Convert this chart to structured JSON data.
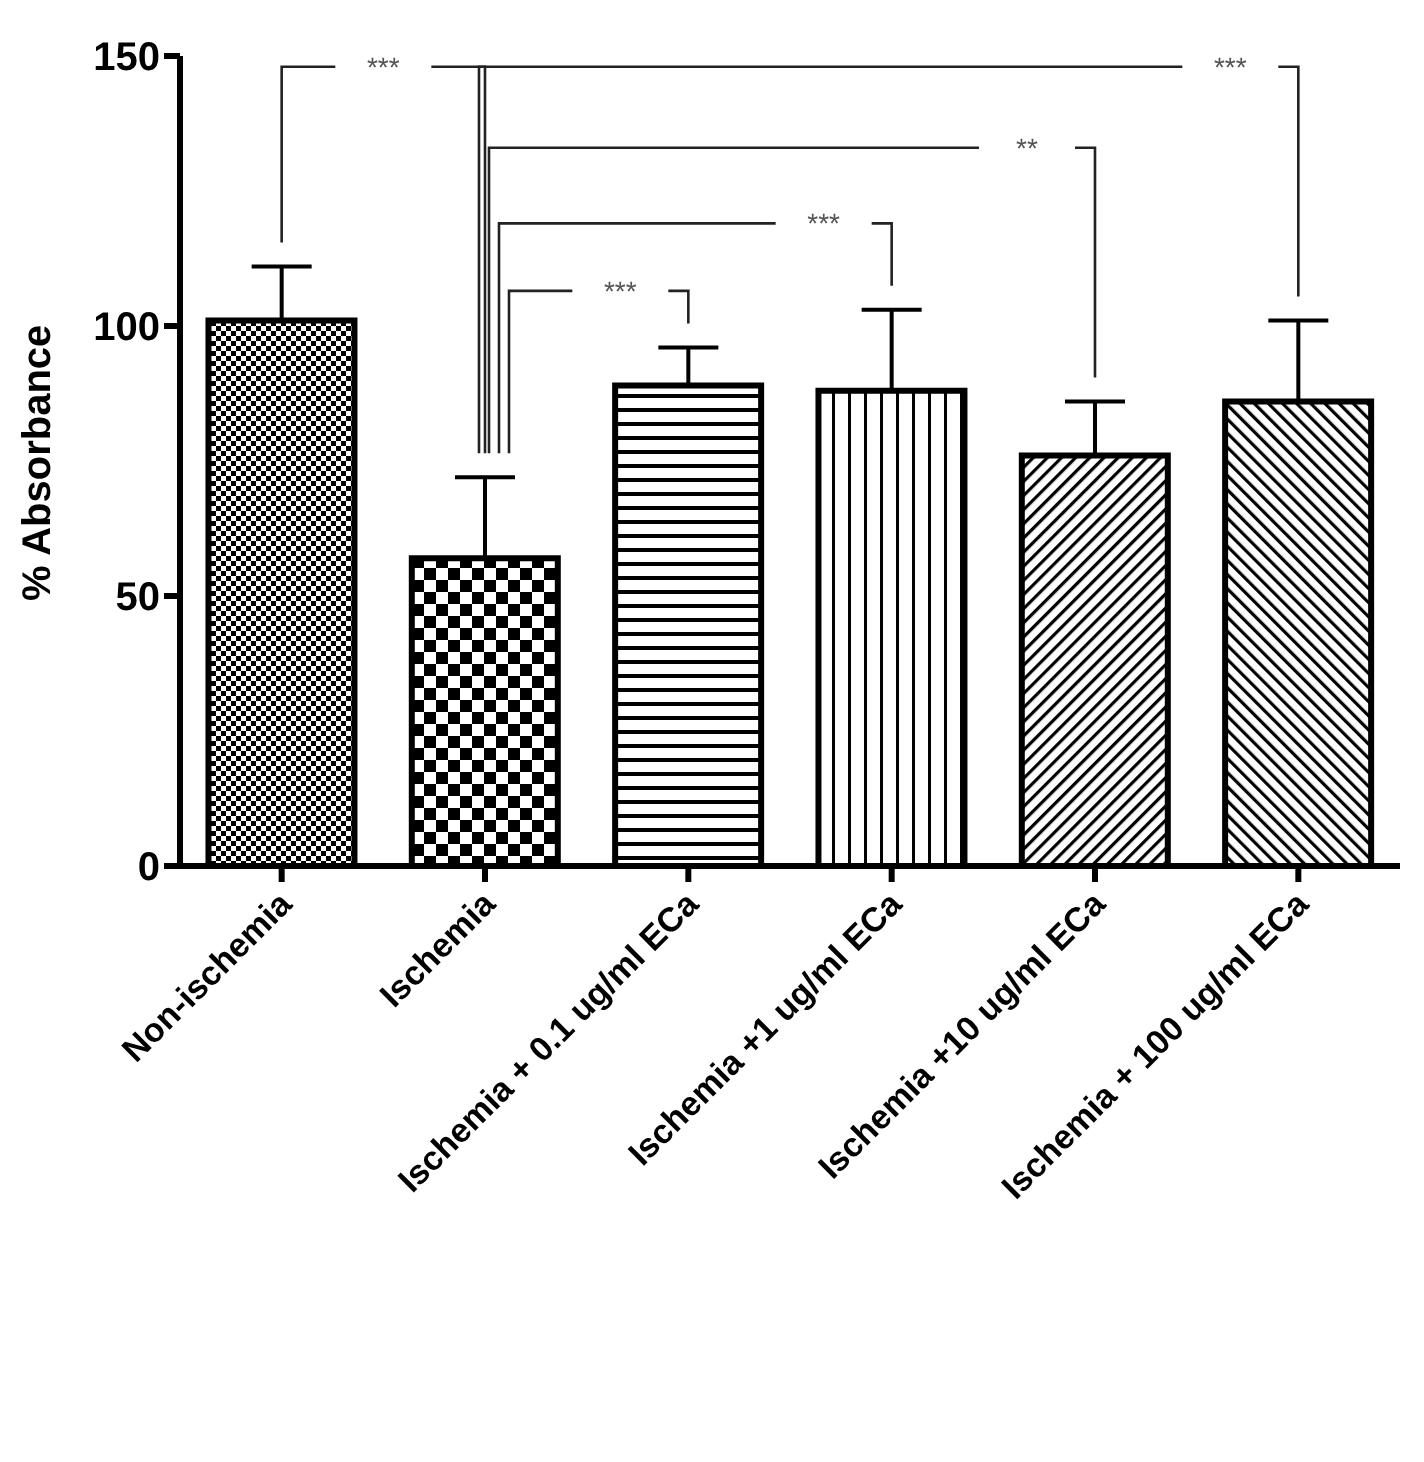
{
  "chart_data": {
    "type": "bar",
    "ylabel": "% Absorbance",
    "categories": [
      "Non-ischemia",
      "Ischemia",
      "Ischemia + 0.1 ug/ml  ECa",
      "Ischemia +1 ug/ml  ECa",
      "Ischemia +10 ug/ml  ECa",
      "Ischemia + 100 ug/ml  ECa"
    ],
    "values": [
      101,
      57,
      89,
      88,
      76,
      86
    ],
    "errors": [
      [
        101,
        111
      ],
      [
        57,
        72
      ],
      [
        89,
        96
      ],
      [
        88,
        103
      ],
      [
        76,
        86
      ],
      [
        86,
        101
      ]
    ],
    "colors": [
      "#000000",
      "#000000",
      "#000000",
      "#000000",
      "#000000",
      "#000000"
    ],
    "ylim": [
      0,
      150
    ],
    "yticks": [
      0,
      50,
      100,
      150
    ],
    "grid": false,
    "legend": false,
    "annotations": [
      "***",
      "***",
      "**",
      "***",
      "***"
    ]
  }
}
